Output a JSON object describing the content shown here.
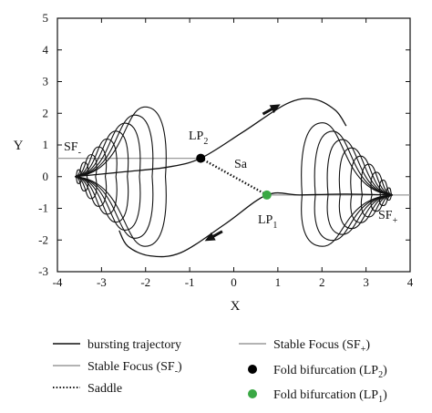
{
  "chart_data": {
    "type": "line",
    "xlabel": "X",
    "ylabel": "Y",
    "xlim": [
      -4,
      4
    ],
    "ylim": [
      -3,
      5
    ],
    "xticks": [
      -4,
      -3,
      -2,
      -1,
      0,
      1,
      2,
      3,
      4
    ],
    "yticks": [
      -3,
      -2,
      -1,
      0,
      1,
      2,
      3,
      4,
      5
    ],
    "grid": false,
    "legend_position": "bottom",
    "stable_focus_minus": {
      "y": 0.58,
      "x_from": -4,
      "x_to": -0.75,
      "color": "#9a9a9a"
    },
    "stable_focus_plus": {
      "y": -0.58,
      "x_from": 0.75,
      "x_to": 4,
      "color": "#9a9a9a"
    },
    "fold_lp2": {
      "x": -0.75,
      "y": 0.58,
      "color": "#000000"
    },
    "fold_lp1": {
      "x": 0.75,
      "y": -0.58,
      "color": "#3aa844"
    },
    "saddle": {
      "from": [
        -0.75,
        0.58
      ],
      "to": [
        0.75,
        -0.58
      ]
    },
    "spiral_left": {
      "center": [
        -3.6,
        0.0
      ],
      "outer_right_x": -1.55,
      "outer_top_y": 2.2,
      "outer_bottom_y": -2.2,
      "loops": 9
    },
    "spiral_right": {
      "center": [
        3.6,
        -0.58
      ],
      "outer_left_x": 1.55,
      "outer_top_y": 1.7,
      "outer_bottom_y": -2.2,
      "loops": 9
    },
    "upper_transition": [
      [
        -3.6,
        0.0
      ],
      [
        -2.5,
        0.15
      ],
      [
        -1.5,
        0.3
      ],
      [
        -0.75,
        0.58
      ],
      [
        0.2,
        1.4
      ],
      [
        1.2,
        2.3
      ],
      [
        1.8,
        2.45
      ],
      [
        2.3,
        2.1
      ],
      [
        2.55,
        1.6
      ]
    ],
    "lower_transition": [
      [
        3.6,
        -0.58
      ],
      [
        2.5,
        -0.55
      ],
      [
        1.5,
        -0.58
      ],
      [
        0.75,
        -0.58
      ],
      [
        -0.2,
        -1.5
      ],
      [
        -1.2,
        -2.4
      ],
      [
        -1.9,
        -2.5
      ],
      [
        -2.4,
        -2.2
      ],
      [
        -2.6,
        -1.7
      ]
    ],
    "arrow_upper": {
      "at": [
        0.95,
        2.2
      ],
      "dir": [
        1,
        0.55
      ]
    },
    "arrow_lower": {
      "at": [
        -0.55,
        -1.95
      ],
      "dir": [
        -1,
        -0.55
      ]
    },
    "annotations": {
      "sf_minus": "SF",
      "sf_minus_sub": "-",
      "sf_plus": "SF",
      "sf_plus_sub": "+",
      "lp2": "LP",
      "lp2_sub": "2",
      "lp1": "LP",
      "lp1_sub": "1",
      "sa": "Sa"
    },
    "legend": [
      {
        "name": "bursting trajectory",
        "style": "solid-dark"
      },
      {
        "name": "Stable Focus (SF",
        "sub": "-",
        "tail": ")",
        "style": "solid-gray"
      },
      {
        "name": "Saddle",
        "style": "dotted"
      },
      {
        "name": "Stable Focus (SF",
        "sub": "+",
        "tail": ")",
        "style": "solid-gray"
      },
      {
        "name": "Fold bifurcation (LP",
        "sub": "2",
        "tail": ")",
        "style": "dot-black"
      },
      {
        "name": "Fold bifurcation (LP",
        "sub": "1",
        "tail": ")",
        "style": "dot-green"
      }
    ]
  }
}
